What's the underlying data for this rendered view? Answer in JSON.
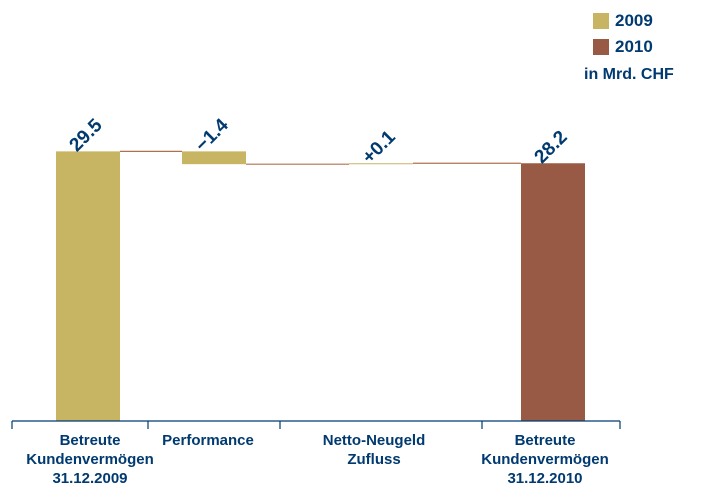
{
  "chart_data": {
    "type": "bar",
    "subtype": "waterfall",
    "unit": "in Mrd. CHF",
    "legend": [
      {
        "name": "2009",
        "color": "#c8b564"
      },
      {
        "name": "2010",
        "color": "#985a44"
      }
    ],
    "bars": [
      {
        "category": [
          "Betreute",
          "Kundenvermögen",
          "31.12.2009"
        ],
        "label": "29.5",
        "value": 29.5,
        "start": 0,
        "end": 29.5,
        "series": "2009"
      },
      {
        "category": [
          "Performance"
        ],
        "label": "−1.4",
        "value": -1.4,
        "start": 29.5,
        "end": 28.1,
        "series": "2009"
      },
      {
        "category": [
          "Netto-Neugeld",
          "Zufluss"
        ],
        "label": "+0.1",
        "value": 0.1,
        "start": 28.1,
        "end": 28.2,
        "series": "2009"
      },
      {
        "category": [
          "Betreute",
          "Kundenvermögen",
          "31.12.2010"
        ],
        "label": "28.2",
        "value": 28.2,
        "start": 0,
        "end": 28.2,
        "series": "2010"
      }
    ],
    "connector_color": "#b07050",
    "axis_color": "#003a70",
    "label_color": "#003a70"
  }
}
